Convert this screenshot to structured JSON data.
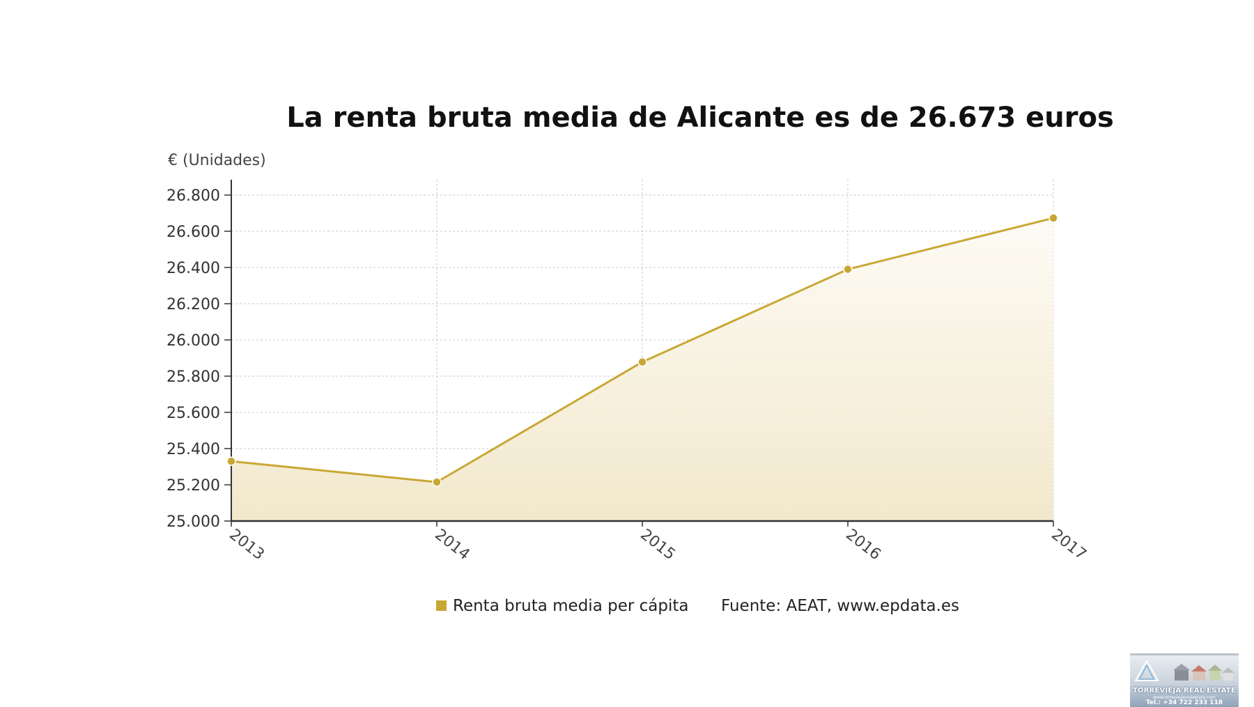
{
  "chart_data": {
    "type": "area",
    "title": "La renta bruta media de Alicante es de 26.673 euros",
    "unit_label": "€ (Unidades)",
    "xlabel": "",
    "ylabel": "€ (Unidades)",
    "categories": [
      "2013",
      "2014",
      "2015",
      "2016",
      "2017"
    ],
    "series": [
      {
        "name": "Renta bruta media per cápita",
        "values": [
          25330,
          25215,
          25878,
          26390,
          26673
        ]
      }
    ],
    "ylim": [
      25000,
      26800
    ],
    "yticks": [
      {
        "value": 26800,
        "label": "26.800"
      },
      {
        "value": 26600,
        "label": "26.600"
      },
      {
        "value": 26400,
        "label": "26.400"
      },
      {
        "value": 26200,
        "label": "26.200"
      },
      {
        "value": 26000,
        "label": "26.000"
      },
      {
        "value": 25800,
        "label": "25.800"
      },
      {
        "value": 25600,
        "label": "25.600"
      },
      {
        "value": 25400,
        "label": "25.400"
      },
      {
        "value": 25200,
        "label": "25.200"
      },
      {
        "value": 25000,
        "label": "25.000"
      }
    ],
    "grid": true,
    "legend_position": "bottom",
    "source": "Fuente: AEAT, www.epdata.es",
    "colors": {
      "line": "#c9a734",
      "fill_top": "#fdfbf5",
      "fill_bottom": "#f2e8cc",
      "grid": "#c8c8c8",
      "axis": "#333333"
    }
  },
  "watermark": {
    "name": "TORREVIEJA REAL ESTATE",
    "web": "www.torreviejarealestate.com",
    "phone": "Tel.: +34 722 233 118"
  }
}
